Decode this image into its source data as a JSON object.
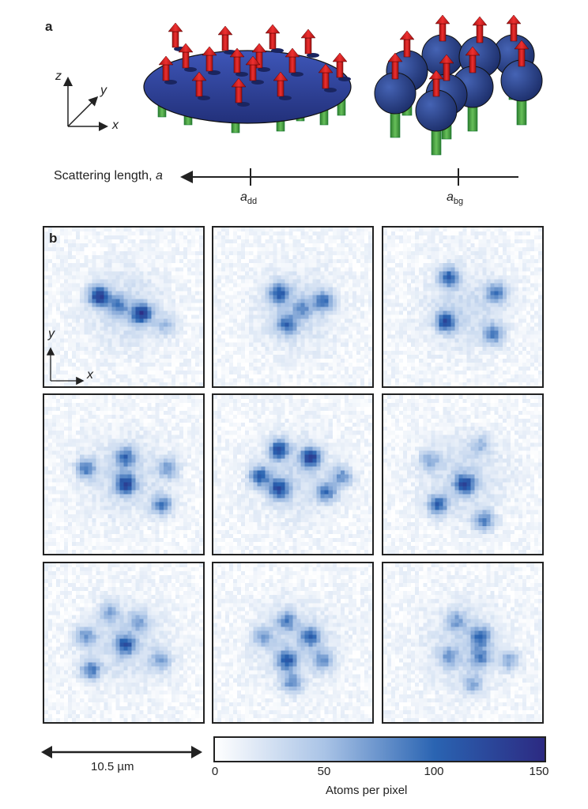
{
  "panel_a": {
    "label": "a",
    "axes": {
      "z": "z",
      "y": "y",
      "x": "x"
    },
    "scale_axis": {
      "title": "Scattering length, ",
      "title_var": "a",
      "ticks": [
        {
          "base": "a",
          "sub": "dd"
        },
        {
          "base": "a",
          "sub": "bg"
        }
      ]
    }
  },
  "panel_b": {
    "label": "b",
    "axes": {
      "y": "y",
      "x": "x"
    },
    "scale_bar": "10.5 µm",
    "colorbar": {
      "label": "Atoms per pixel",
      "ticks": [
        "0",
        "50",
        "100",
        "150"
      ],
      "min": 0,
      "max": 150,
      "colors": [
        "#ffffff",
        "#a9c3e6",
        "#2a64b2",
        "#2c2a82"
      ]
    },
    "image_count": 9
  }
}
